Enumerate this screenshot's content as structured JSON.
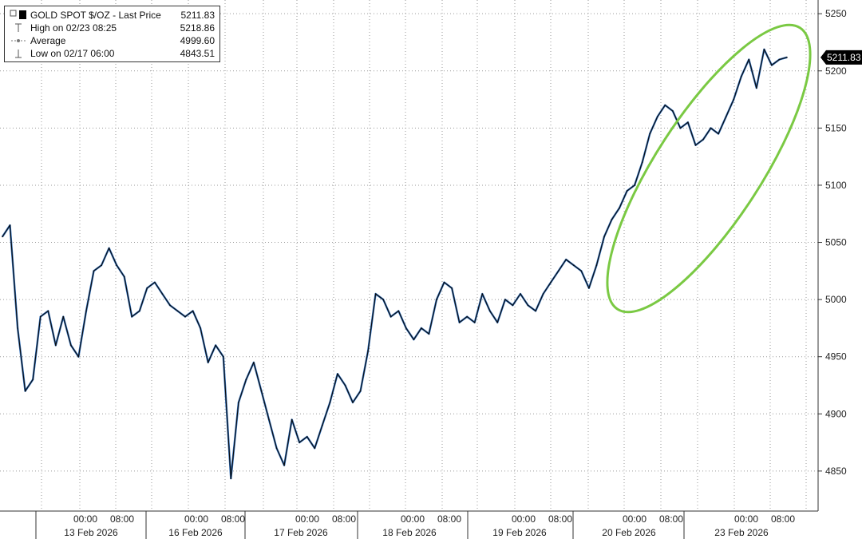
{
  "legend": {
    "title_label": "GOLD SPOT $/OZ - Last Price",
    "title_value": "5211.83",
    "high_label": "High on 02/23 08:25",
    "high_value": "5218.86",
    "avg_label": "Average",
    "avg_value": "4999.60",
    "low_label": "Low on 02/17 06:00",
    "low_value": "4843.51"
  },
  "last_price_tag": "5211.83",
  "colors": {
    "line_dark": "#0a0a0a",
    "line_blue": "#2f6fbd",
    "highlight_ellipse": "#7ac943",
    "grid": "#9a9a9a",
    "price_tag_bg": "#000000"
  },
  "chart_data": {
    "type": "line",
    "title": "GOLD SPOT $/OZ - Last Price",
    "xlabel": "",
    "ylabel": "",
    "ylim": [
      4815,
      5262
    ],
    "y_ticks": [
      4850,
      4900,
      4950,
      5000,
      5050,
      5100,
      5150,
      5200,
      5250
    ],
    "x_tick_labels": [
      "00:00",
      "08:00",
      "00:00",
      "08:00",
      "00:00",
      "08:00",
      "00:00",
      "08:00",
      "00:00",
      "08:00",
      "00:00",
      "08:00",
      "00:00",
      "08:00"
    ],
    "date_labels": [
      "13 Feb 2026",
      "16 Feb 2026",
      "17 Feb 2026",
      "18 Feb 2026",
      "19 Feb 2026",
      "20 Feb 2026",
      "23 Feb 2026"
    ],
    "grid": true,
    "legend_position": "top-left",
    "annotation": "green ellipse highlighting the rally from 20 Feb to 23 Feb 2026",
    "series": [
      {
        "name": "GOLD SPOT $/OZ",
        "last_price": 5211.83,
        "points": [
          [
            "13 Feb 2026 (start)",
            5055
          ],
          [
            "",
            5065
          ],
          [
            "",
            4975
          ],
          [
            "",
            4920
          ],
          [
            "",
            4930
          ],
          [
            "",
            4985
          ],
          [
            "",
            4990
          ],
          [
            "",
            4960
          ],
          [
            "",
            4985
          ],
          [
            "13 Feb 2026 08:00",
            4960
          ],
          [
            "",
            4950
          ],
          [
            "",
            4990
          ],
          [
            "",
            5025
          ],
          [
            "",
            5030
          ],
          [
            "",
            5045
          ],
          [
            "",
            5030
          ],
          [
            "16 Feb 2026 00:00",
            5020
          ],
          [
            "16 Feb 2026 08:00",
            4985
          ],
          [
            "",
            4990
          ],
          [
            "",
            5010
          ],
          [
            "",
            5015
          ],
          [
            "",
            5005
          ],
          [
            "",
            4995
          ],
          [
            "",
            4990
          ],
          [
            "",
            4985
          ],
          [
            "",
            4990
          ],
          [
            "",
            4975
          ],
          [
            "",
            4945
          ],
          [
            "",
            4960
          ],
          [
            "17 Feb 2026 00:00",
            4950
          ],
          [
            "17 Feb 2026 06:00",
            4843.51
          ],
          [
            "",
            4910
          ],
          [
            "",
            4930
          ],
          [
            "",
            4945
          ],
          [
            "",
            4920
          ],
          [
            "",
            4895
          ],
          [
            "",
            4870
          ],
          [
            "",
            4855
          ],
          [
            "",
            4895
          ],
          [
            "",
            4875
          ],
          [
            "",
            4880
          ],
          [
            "",
            4870
          ],
          [
            "",
            4890
          ],
          [
            "",
            4910
          ],
          [
            "",
            4935
          ],
          [
            "18 Feb 2026 00:00",
            4925
          ],
          [
            "",
            4910
          ],
          [
            "",
            4920
          ],
          [
            "18 Feb 2026 08:00",
            4955
          ],
          [
            "",
            5005
          ],
          [
            "",
            5000
          ],
          [
            "",
            4985
          ],
          [
            "",
            4990
          ],
          [
            "",
            4975
          ],
          [
            "",
            4965
          ],
          [
            "",
            4975
          ],
          [
            "",
            4970
          ],
          [
            "19 Feb 2026 00:00",
            5000
          ],
          [
            "",
            5015
          ],
          [
            "",
            5010
          ],
          [
            "",
            4980
          ],
          [
            "",
            4985
          ],
          [
            "",
            4980
          ],
          [
            "",
            5005
          ],
          [
            "19 Feb 2026 08:00",
            4990
          ],
          [
            "",
            4980
          ],
          [
            "",
            5000
          ],
          [
            "",
            4995
          ],
          [
            "",
            5005
          ],
          [
            "",
            4995
          ],
          [
            "",
            4990
          ],
          [
            "",
            5005
          ],
          [
            "",
            5015
          ],
          [
            "",
            5025
          ],
          [
            "",
            5035
          ],
          [
            "20 Feb 2026 00:00",
            5030
          ],
          [
            "",
            5025
          ],
          [
            "",
            5010
          ],
          [
            "20 Feb 2026 08:00",
            5030
          ],
          [
            "",
            5055
          ],
          [
            "",
            5070
          ],
          [
            "",
            5080
          ],
          [
            "",
            5095
          ],
          [
            "",
            5100
          ],
          [
            "",
            5120
          ],
          [
            "",
            5145
          ],
          [
            "",
            5160
          ],
          [
            "",
            5170
          ],
          [
            "",
            5165
          ],
          [
            "",
            5150
          ],
          [
            "",
            5155
          ],
          [
            "",
            5135
          ],
          [
            "",
            5140
          ],
          [
            "23 Feb 2026 00:00",
            5150
          ],
          [
            "",
            5145
          ],
          [
            "",
            5160
          ],
          [
            "",
            5175
          ],
          [
            "",
            5195
          ],
          [
            "",
            5210
          ],
          [
            "",
            5185
          ],
          [
            "23 Feb 2026 08:25",
            5218.86
          ],
          [
            "",
            5205
          ],
          [
            "",
            5210
          ],
          [
            "",
            5211.83
          ]
        ]
      }
    ]
  }
}
